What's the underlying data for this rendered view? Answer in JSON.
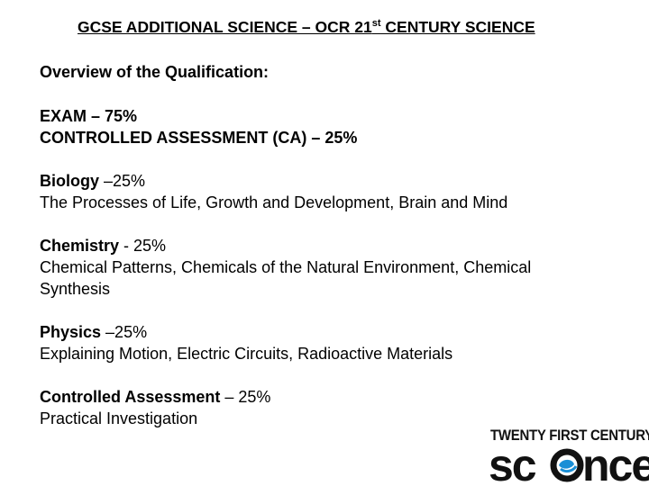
{
  "title": {
    "before_sup": "GCSE ADDITIONAL SCIENCE – OCR 21",
    "sup": "st",
    "after_sup": " CENTURY SCIENCE"
  },
  "overview_heading": "Overview of the Qualification:",
  "assessment": {
    "exam": "EXAM – 75%",
    "ca": "CONTROLLED ASSESSMENT (CA) – 25%"
  },
  "biology": {
    "label": "Biology",
    "percent": " –25%",
    "topics": "The Processes of Life, Growth and Development, Brain and Mind"
  },
  "chemistry": {
    "label": "Chemistry",
    "percent": " - 25%",
    "topics_line1": "Chemical Patterns, Chemicals of the Natural Environment, Chemical",
    "topics_line2": "Synthesis"
  },
  "physics": {
    "label": "Physics",
    "percent": " –25%",
    "topics": "Explaining Motion, Electric Circuits, Radioactive Materials"
  },
  "controlled_assessment": {
    "label": "Controlled Assessment",
    "percent": " – 25%",
    "description": "Practical Investigation"
  },
  "logo": {
    "top_text": "TWENTY FIRST CENTURY",
    "word_part1": "sc",
    "word_part2": "nce",
    "accent_color": "#1a8fd6"
  }
}
